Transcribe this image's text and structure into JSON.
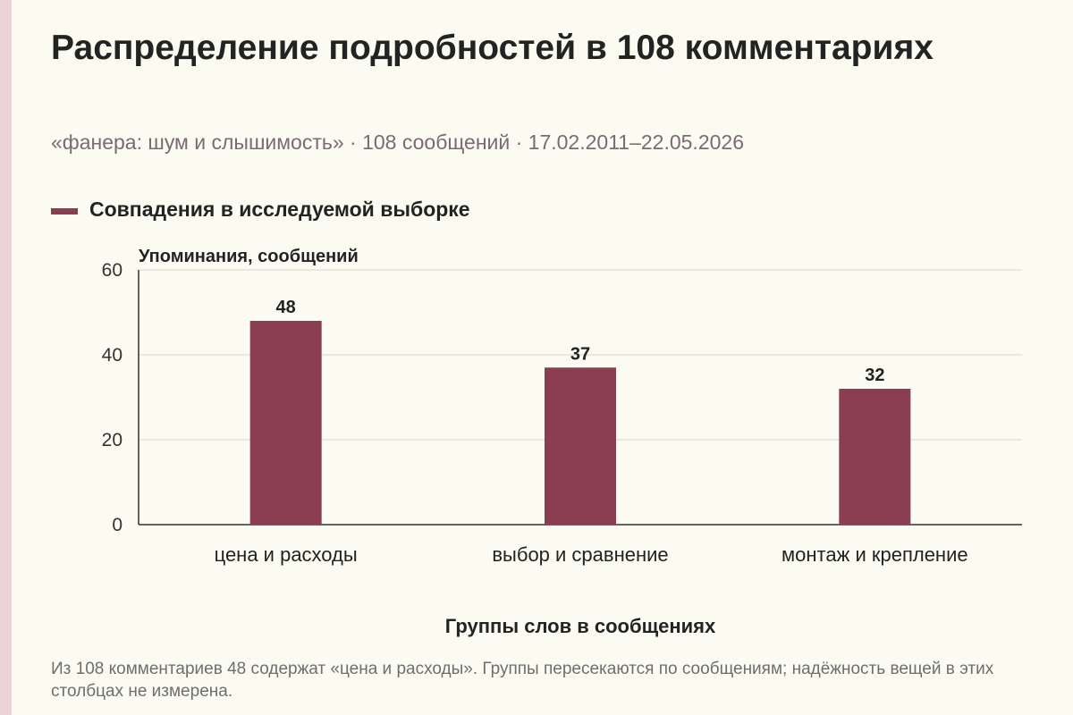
{
  "title": "Распределение подробностей в 108 комментариях",
  "subtitle": "«фанера: шум и слышимость» · 108 сообщений · 17.02.2011–22.05.2026",
  "footnote": "Из 108 комментариев 48 содержат «цена и расходы». Группы пересекаются по сообщениям; надёжность вещей в этих столбцах не измерена.",
  "colors": {
    "bar": "#8b3d52",
    "background": "#fcfbf2",
    "accent_strip": "#ecd3d8"
  },
  "chart_data": {
    "type": "bar",
    "categories": [
      "цена и расходы",
      "выбор и сравнение",
      "монтаж и крепление"
    ],
    "series": [
      {
        "name": "Совпадения в исследуемой выборке",
        "values": [
          48,
          37,
          32
        ]
      }
    ],
    "xlabel": "Группы слов в сообщениях",
    "ylabel": "Упоминания, сообщений",
    "ylim": [
      0,
      60
    ],
    "yticks": [
      0,
      20,
      40,
      60
    ],
    "grid": true,
    "data_labels": true,
    "legend_position": "top-left"
  }
}
